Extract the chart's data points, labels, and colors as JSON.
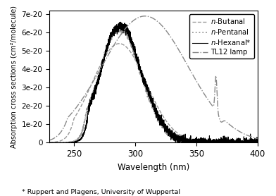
{
  "xlabel": "Wavelength (nm)",
  "ylabel": "Absorption cross sections (cm²/molecule)",
  "footnote": "* Ruppert and Plagens, University of Wuppertal",
  "xlim": [
    230,
    400
  ],
  "ylim": [
    0,
    7.2e-20
  ],
  "legend_labels": [
    "n-Butanal",
    "n-Pentanal",
    "n-Hexanal*",
    "TL12 lamp"
  ],
  "ytick_vals": [
    0,
    1e-20,
    2e-20,
    3e-20,
    4e-20,
    5e-20,
    6e-20,
    7e-20
  ],
  "ytick_labels": [
    "0",
    "1e-20",
    "2e-20",
    "3e-20",
    "4e-20",
    "5e-20",
    "6e-20",
    "7e-20"
  ],
  "xtick_vals": [
    250,
    300,
    350,
    400
  ]
}
